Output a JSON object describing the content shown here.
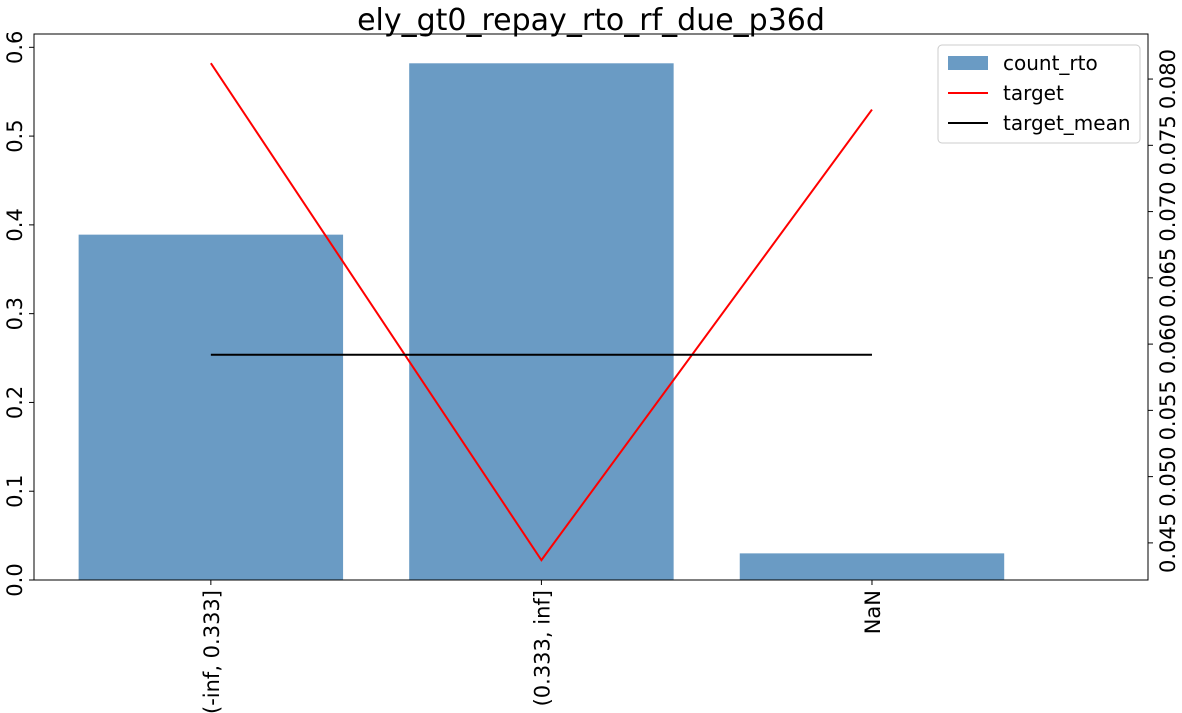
{
  "chart_data": {
    "type": "bar+line",
    "title": "ely_gt0_repay_rto_rf_due_p36d",
    "categories": [
      "(-inf, 0.333]",
      "(0.333, inf]",
      "NaN"
    ],
    "series": [
      {
        "name": "count_rto",
        "type": "bar",
        "axis": "left",
        "color": "#6a9bc4",
        "values": [
          0.389,
          0.582,
          0.03
        ]
      },
      {
        "name": "target",
        "type": "line",
        "axis": "right",
        "color": "#ff0000",
        "values": [
          0.0812,
          0.0437,
          0.0777
        ]
      },
      {
        "name": "target_mean",
        "type": "line",
        "axis": "right",
        "color": "#000000",
        "values": [
          0.0592,
          0.0592,
          0.0592
        ]
      }
    ],
    "y_left": {
      "range": [
        0,
        0.615
      ],
      "ticks": [
        0.0,
        0.1,
        0.2,
        0.3,
        0.4,
        0.5,
        0.6
      ],
      "tick_labels": [
        "0.0",
        "0.1",
        "0.2",
        "0.3",
        "0.4",
        "0.5",
        "0.6"
      ]
    },
    "y_right": {
      "range": [
        0.0422,
        0.0834
      ],
      "ticks": [
        0.045,
        0.05,
        0.055,
        0.06,
        0.065,
        0.07,
        0.075,
        0.08
      ],
      "tick_labels": [
        "0.045",
        "0.050",
        "0.055",
        "0.060",
        "0.065",
        "0.070",
        "0.075",
        "0.080"
      ]
    },
    "xlabel": "",
    "ylabel": "",
    "grid": false,
    "legend_position": "top-right"
  }
}
